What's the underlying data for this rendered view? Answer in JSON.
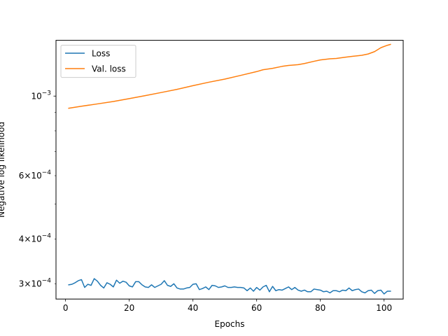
{
  "chart_data": {
    "type": "line",
    "xlabel": "Epochs",
    "ylabel": "Negative log likelihood",
    "xlim": [
      -3,
      106
    ],
    "ylim": [
      0.000272,
      0.00143
    ],
    "yscale": "log",
    "grid": false,
    "legend_position": "top-left",
    "x_ticks": [
      {
        "value": 0,
        "label": "0"
      },
      {
        "value": 20,
        "label": "20"
      },
      {
        "value": 40,
        "label": "40"
      },
      {
        "value": 60,
        "label": "60"
      },
      {
        "value": 80,
        "label": "80"
      },
      {
        "value": 100,
        "label": "100"
      }
    ],
    "y_major_ticks": [
      {
        "value": 0.001,
        "mantissa": "",
        "exponent": "−3"
      }
    ],
    "y_minor_ticks": [
      {
        "value": 0.0003,
        "mantissa": "3",
        "exponent": "−4"
      },
      {
        "value": 0.0004,
        "mantissa": "4",
        "exponent": "−4"
      },
      {
        "value": 0.0006,
        "mantissa": "6",
        "exponent": "−4"
      },
      {
        "value": 0.0005,
        "mantissa": "",
        "exponent": ""
      },
      {
        "value": 0.0007,
        "mantissa": "",
        "exponent": ""
      },
      {
        "value": 0.0008,
        "mantissa": "",
        "exponent": ""
      },
      {
        "value": 0.0009,
        "mantissa": "",
        "exponent": ""
      }
    ],
    "series": [
      {
        "name": "Loss",
        "color": "#1f77b4",
        "x": [
          1,
          2,
          3,
          4,
          5,
          6,
          7,
          8,
          9,
          10,
          11,
          12,
          13,
          14,
          15,
          16,
          17,
          18,
          19,
          20,
          21,
          22,
          23,
          24,
          25,
          26,
          27,
          28,
          29,
          30,
          31,
          32,
          33,
          34,
          35,
          36,
          37,
          38,
          39,
          40,
          41,
          42,
          43,
          44,
          45,
          46,
          47,
          48,
          49,
          50,
          51,
          52,
          53,
          54,
          55,
          56,
          57,
          58,
          59,
          60,
          61,
          62,
          63,
          64,
          65,
          66,
          67,
          68,
          69,
          70,
          71,
          72,
          73,
          74,
          75,
          76,
          77,
          78,
          79,
          80,
          81,
          82,
          83,
          84,
          85,
          86,
          87,
          88,
          89,
          90,
          91,
          92,
          93,
          94,
          95,
          96,
          97,
          98,
          99,
          100,
          101,
          102
        ],
        "y": [
          0.000298,
          0.000299,
          0.000302,
          0.000306,
          0.000308,
          0.000293,
          0.000299,
          0.000297,
          0.00031,
          0.000305,
          0.000297,
          0.000292,
          0.000302,
          0.000299,
          0.000294,
          0.000307,
          0.000301,
          0.000305,
          0.000303,
          0.000296,
          0.000294,
          0.000304,
          0.000304,
          0.000298,
          0.000294,
          0.000293,
          0.000298,
          0.000293,
          0.000296,
          0.000299,
          0.000306,
          0.000297,
          0.000295,
          0.0003,
          0.000292,
          0.00029,
          0.00029,
          0.000292,
          0.000293,
          0.000299,
          0.0003,
          0.000289,
          0.000291,
          0.000294,
          0.000289,
          0.000297,
          0.000296,
          0.000293,
          0.000294,
          0.000296,
          0.000293,
          0.000293,
          0.000294,
          0.000293,
          0.000293,
          0.000292,
          0.000287,
          0.000292,
          0.000286,
          0.000293,
          0.000288,
          0.000294,
          0.000297,
          0.000285,
          0.000295,
          0.000287,
          0.000289,
          0.000288,
          0.000291,
          0.000294,
          0.000289,
          0.000293,
          0.000288,
          0.000286,
          0.000288,
          0.000285,
          0.000285,
          0.00029,
          0.000289,
          0.000288,
          0.000285,
          0.000286,
          0.000283,
          0.000287,
          0.000287,
          0.000285,
          0.000288,
          0.000287,
          0.000292,
          0.000287,
          0.000289,
          0.00029,
          0.000285,
          0.000283,
          0.000287,
          0.000288,
          0.000282,
          0.000287,
          0.000288,
          0.000281,
          0.000286,
          0.000286
        ]
      },
      {
        "name": "Val. loss",
        "color": "#ff7f0e",
        "x": [
          1,
          5,
          10,
          15,
          20,
          25,
          30,
          35,
          40,
          45,
          50,
          55,
          60,
          62,
          65,
          68,
          70,
          73,
          75,
          78,
          80,
          83,
          85,
          88,
          90,
          93,
          95,
          97,
          99,
          101,
          102
        ],
        "y": [
          0.000925,
          0.000937,
          0.000951,
          0.000966,
          0.000984,
          0.001003,
          0.001023,
          0.001044,
          0.001069,
          0.001093,
          0.001115,
          0.001142,
          0.00117,
          0.001184,
          0.001195,
          0.00121,
          0.001217,
          0.001223,
          0.001232,
          0.00125,
          0.001261,
          0.00127,
          0.001273,
          0.001284,
          0.00129,
          0.001299,
          0.00131,
          0.00133,
          0.001364,
          0.001385,
          0.001393
        ]
      }
    ]
  }
}
